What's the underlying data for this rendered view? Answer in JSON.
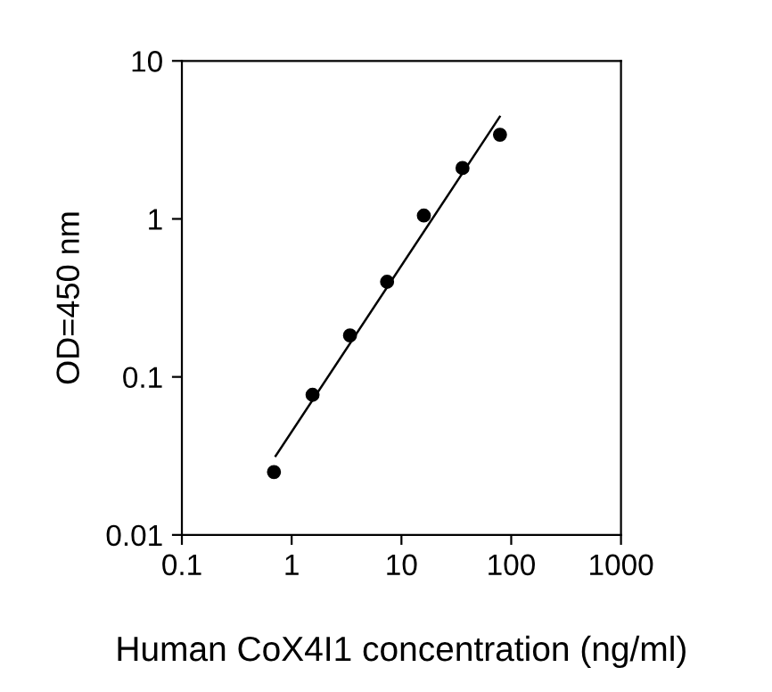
{
  "chart_data": {
    "type": "scatter",
    "xlabel": "Human CoX4I1 concentration (ng/ml)",
    "ylabel": "OD=450 nm",
    "log": "xy",
    "grid": false,
    "xlim": [
      0.1,
      1000
    ],
    "ylim": [
      0.01,
      10
    ],
    "xticks": [
      0.1,
      1,
      10,
      100,
      1000
    ],
    "yticks": [
      0.01,
      0.1,
      1,
      10
    ],
    "series": [
      {
        "marker": "circle",
        "color": "#000000",
        "x": [
          0.69,
          1.55,
          3.4,
          7.4,
          16,
          36,
          79
        ],
        "values": [
          0.025,
          0.077,
          0.183,
          0.4,
          1.05,
          2.1,
          3.41
        ]
      },
      {
        "type": "line",
        "color": "#000000",
        "x": [
          0.715,
          78.6
        ],
        "values": [
          0.0316,
          4.43
        ]
      }
    ]
  }
}
